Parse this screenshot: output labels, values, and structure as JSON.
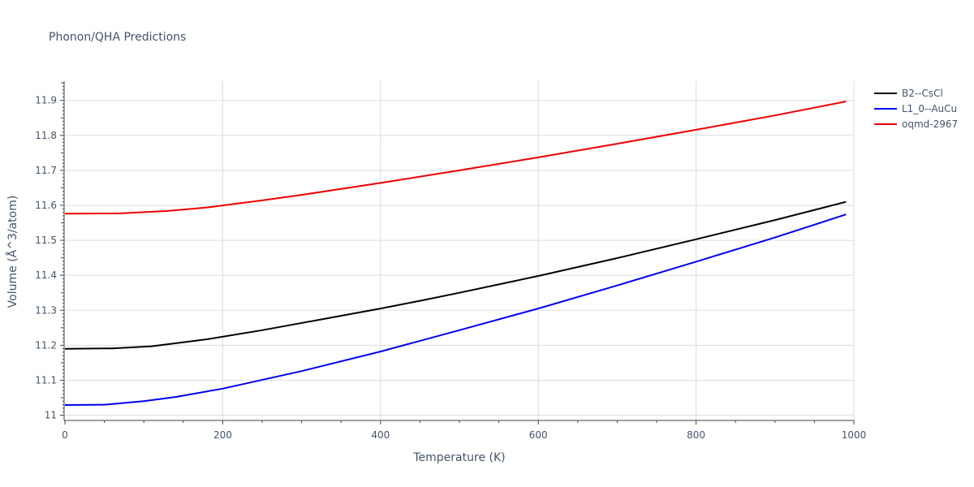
{
  "chart_data": {
    "type": "line",
    "title": "Phonon/QHA Predictions",
    "xlabel": "Temperature (K)",
    "ylabel": "Volume (Å^3/atom)",
    "xlim": [
      0,
      1000
    ],
    "ylim": [
      10.985,
      11.955
    ],
    "x_ticks": [
      0,
      200,
      400,
      600,
      800,
      1000
    ],
    "y_ticks": [
      11,
      11.1,
      11.2,
      11.3,
      11.4,
      11.5,
      11.6,
      11.7,
      11.8,
      11.9
    ],
    "x_tick_labels": [
      "0",
      "200",
      "400",
      "600",
      "800",
      "1000"
    ],
    "y_tick_labels": [
      "11",
      "11.1",
      "11.2",
      "11.3",
      "11.4",
      "11.5",
      "11.6",
      "11.7",
      "11.8",
      "11.9"
    ],
    "grid": true,
    "legend_position": "top-right",
    "series": [
      {
        "name": "B2--CsCl",
        "color": "#000000",
        "x": [
          0,
          60,
          110,
          180,
          250,
          330,
          400,
          450,
          500,
          600,
          700,
          800,
          900,
          990
        ],
        "y": [
          11.19,
          11.191,
          11.197,
          11.217,
          11.243,
          11.276,
          11.305,
          11.327,
          11.35,
          11.398,
          11.449,
          11.503,
          11.558,
          11.61
        ]
      },
      {
        "name": "L1_0--AuCu",
        "color": "#0000ee",
        "x": [
          0,
          50,
          100,
          140,
          200,
          300,
          400,
          500,
          600,
          700,
          800,
          900,
          990
        ],
        "y": [
          11.029,
          11.03,
          11.04,
          11.052,
          11.076,
          11.126,
          11.182,
          11.243,
          11.305,
          11.371,
          11.439,
          11.508,
          11.574
        ]
      },
      {
        "name": "oqmd-2967",
        "color": "#ee0000",
        "x": [
          0,
          70,
          130,
          180,
          250,
          300,
          400,
          500,
          600,
          700,
          800,
          900,
          990
        ],
        "y": [
          11.576,
          11.577,
          11.584,
          11.594,
          11.614,
          11.63,
          11.664,
          11.7,
          11.737,
          11.776,
          11.816,
          11.857,
          11.897
        ]
      }
    ]
  }
}
